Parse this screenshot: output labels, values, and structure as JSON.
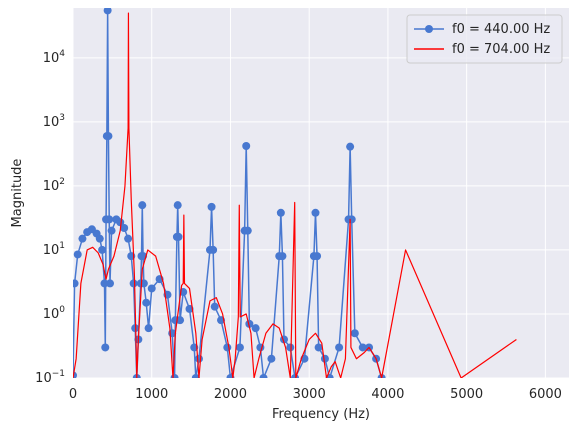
{
  "chart_data": {
    "type": "line",
    "title": "",
    "xlabel": "Frequency (Hz)",
    "ylabel": "Magnitude",
    "x_scale": "linear",
    "y_scale": "log",
    "xlim": [
      0,
      6300
    ],
    "ylim": [
      0.1,
      60000
    ],
    "x_ticks": [
      0,
      1000,
      2000,
      3000,
      4000,
      5000,
      6000
    ],
    "x_tick_labels": [
      "0",
      "1000",
      "2000",
      "3000",
      "4000",
      "5000",
      "6000"
    ],
    "y_ticks": [
      0.1,
      1,
      10,
      100,
      1000,
      10000
    ],
    "grid": true,
    "legend_position": "upper-right",
    "colors": {
      "background": "#eaeaf2",
      "grid": "#ffffff",
      "series_1": "#4878d0",
      "series_2": "#ff0000"
    },
    "series": [
      {
        "name": "f0 = 440.00 Hz",
        "style": "line-with-circle-markers",
        "color": "#4878d0",
        "points": [
          [
            0,
            0.11
          ],
          [
            20,
            3.0
          ],
          [
            60,
            8.5
          ],
          [
            120,
            15
          ],
          [
            180,
            19
          ],
          [
            240,
            21
          ],
          [
            300,
            18
          ],
          [
            340,
            15
          ],
          [
            370,
            10
          ],
          [
            400,
            3
          ],
          [
            410,
            0.3
          ],
          [
            420,
            30
          ],
          [
            430,
            600
          ],
          [
            440,
            55000
          ],
          [
            450,
            600
          ],
          [
            460,
            30
          ],
          [
            470,
            3
          ],
          [
            490,
            20
          ],
          [
            550,
            30
          ],
          [
            600,
            27
          ],
          [
            650,
            22
          ],
          [
            700,
            15
          ],
          [
            740,
            8
          ],
          [
            770,
            3
          ],
          [
            790,
            0.6
          ],
          [
            810,
            0.1
          ],
          [
            830,
            0.4
          ],
          [
            860,
            3
          ],
          [
            870,
            8
          ],
          [
            880,
            50
          ],
          [
            890,
            8
          ],
          [
            900,
            3
          ],
          [
            930,
            1.5
          ],
          [
            960,
            0.6
          ],
          [
            1000,
            2.5
          ],
          [
            1100,
            3.5
          ],
          [
            1200,
            2
          ],
          [
            1260,
            0.5
          ],
          [
            1290,
            0.1
          ],
          [
            1300,
            0.8
          ],
          [
            1320,
            16
          ],
          [
            1330,
            50
          ],
          [
            1340,
            16
          ],
          [
            1360,
            0.8
          ],
          [
            1400,
            2.2
          ],
          [
            1480,
            1.2
          ],
          [
            1540,
            0.3
          ],
          [
            1560,
            0.1
          ],
          [
            1600,
            0.2
          ],
          [
            1740,
            10
          ],
          [
            1760,
            47
          ],
          [
            1780,
            10
          ],
          [
            1800,
            1.3
          ],
          [
            1880,
            0.8
          ],
          [
            1960,
            0.3
          ],
          [
            2000,
            0.1
          ],
          [
            2120,
            0.3
          ],
          [
            2180,
            20
          ],
          [
            2200,
            420
          ],
          [
            2220,
            20
          ],
          [
            2240,
            0.7
          ],
          [
            2320,
            0.6
          ],
          [
            2380,
            0.3
          ],
          [
            2420,
            0.1
          ],
          [
            2520,
            0.2
          ],
          [
            2620,
            8
          ],
          [
            2640,
            38
          ],
          [
            2660,
            8
          ],
          [
            2680,
            0.4
          ],
          [
            2760,
            0.3
          ],
          [
            2820,
            0.1
          ],
          [
            2940,
            0.2
          ],
          [
            3060,
            8
          ],
          [
            3080,
            38
          ],
          [
            3100,
            8
          ],
          [
            3120,
            0.3
          ],
          [
            3200,
            0.2
          ],
          [
            3260,
            0.1
          ],
          [
            3380,
            0.3
          ],
          [
            3500,
            30
          ],
          [
            3520,
            410
          ],
          [
            3540,
            30
          ],
          [
            3580,
            0.5
          ],
          [
            3680,
            0.3
          ],
          [
            3760,
            0.3
          ],
          [
            3850,
            0.2
          ],
          [
            3920,
            0.1
          ]
        ]
      },
      {
        "name": "f0 = 704.00 Hz",
        "style": "line",
        "color": "#ff0000",
        "points": [
          [
            0,
            0.1
          ],
          [
            40,
            0.2
          ],
          [
            100,
            3
          ],
          [
            180,
            10
          ],
          [
            250,
            11
          ],
          [
            320,
            9
          ],
          [
            380,
            6
          ],
          [
            420,
            3.5
          ],
          [
            450,
            5
          ],
          [
            520,
            8
          ],
          [
            600,
            20
          ],
          [
            660,
            100
          ],
          [
            700,
            800
          ],
          [
            704,
            50000
          ],
          [
            710,
            800
          ],
          [
            740,
            60
          ],
          [
            780,
            4
          ],
          [
            800,
            0.4
          ],
          [
            810,
            0.1
          ],
          [
            830,
            0.4
          ],
          [
            880,
            5
          ],
          [
            950,
            10
          ],
          [
            1050,
            8
          ],
          [
            1150,
            3
          ],
          [
            1230,
            0.6
          ],
          [
            1270,
            0.1
          ],
          [
            1300,
            0.5
          ],
          [
            1380,
            2.8
          ],
          [
            1400,
            3
          ],
          [
            1408,
            35
          ],
          [
            1416,
            3
          ],
          [
            1480,
            2.5
          ],
          [
            1560,
            0.5
          ],
          [
            1600,
            0.1
          ],
          [
            1640,
            0.4
          ],
          [
            1740,
            1.6
          ],
          [
            1820,
            1.8
          ],
          [
            1900,
            1.0
          ],
          [
            1980,
            0.3
          ],
          [
            2030,
            0.1
          ],
          [
            2060,
            0.2
          ],
          [
            2100,
            0.9
          ],
          [
            2112,
            50
          ],
          [
            2124,
            0.9
          ],
          [
            2200,
            1.0
          ],
          [
            2260,
            0.5
          ],
          [
            2300,
            0.1
          ],
          [
            2360,
            0.2
          ],
          [
            2450,
            0.5
          ],
          [
            2540,
            0.7
          ],
          [
            2620,
            0.6
          ],
          [
            2700,
            0.3
          ],
          [
            2760,
            0.1
          ],
          [
            2816,
            55
          ],
          [
            2830,
            0.1
          ],
          [
            2900,
            0.2
          ],
          [
            3000,
            0.4
          ],
          [
            3080,
            0.5
          ],
          [
            3160,
            0.35
          ],
          [
            3220,
            0.1
          ],
          [
            3280,
            0.15
          ],
          [
            3330,
            0.18
          ],
          [
            3400,
            0.1
          ],
          [
            3460,
            0.2
          ],
          [
            3520,
            30
          ],
          [
            3530,
            0.3
          ],
          [
            3600,
            0.2
          ],
          [
            3700,
            0.25
          ],
          [
            3760,
            0.3
          ],
          [
            3850,
            0.2
          ],
          [
            3920,
            0.1
          ],
          [
            4224,
            10
          ],
          [
            4930,
            0.1
          ],
          [
            5632,
            0.4
          ]
        ]
      }
    ]
  }
}
